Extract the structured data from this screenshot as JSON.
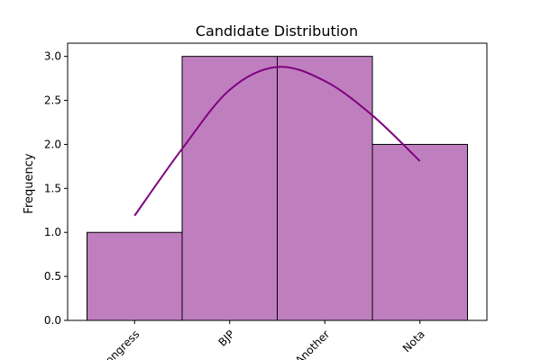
{
  "chart_data": {
    "type": "bar",
    "title": "Candidate Distribution",
    "xlabel": "",
    "ylabel": "Frequency",
    "categories": [
      "Congress",
      "BJP",
      "Another",
      "Nota"
    ],
    "values": [
      1,
      3,
      3,
      2
    ],
    "kde_overlay": {
      "type": "line",
      "x_category_index": [
        0,
        0.5,
        1,
        1.5,
        2,
        2.5,
        3
      ],
      "values": [
        1.19,
        1.95,
        2.62,
        2.88,
        2.72,
        2.33,
        1.81
      ]
    },
    "ylim": [
      0,
      3.15
    ],
    "yticks": [
      "0.0",
      "0.5",
      "1.0",
      "1.5",
      "2.0",
      "2.5",
      "3.0"
    ],
    "grid": false,
    "legend": "none",
    "colors": {
      "bar_fill": "#bf7fbf",
      "bar_edge": "#000000",
      "kde_line": "#800080"
    }
  }
}
